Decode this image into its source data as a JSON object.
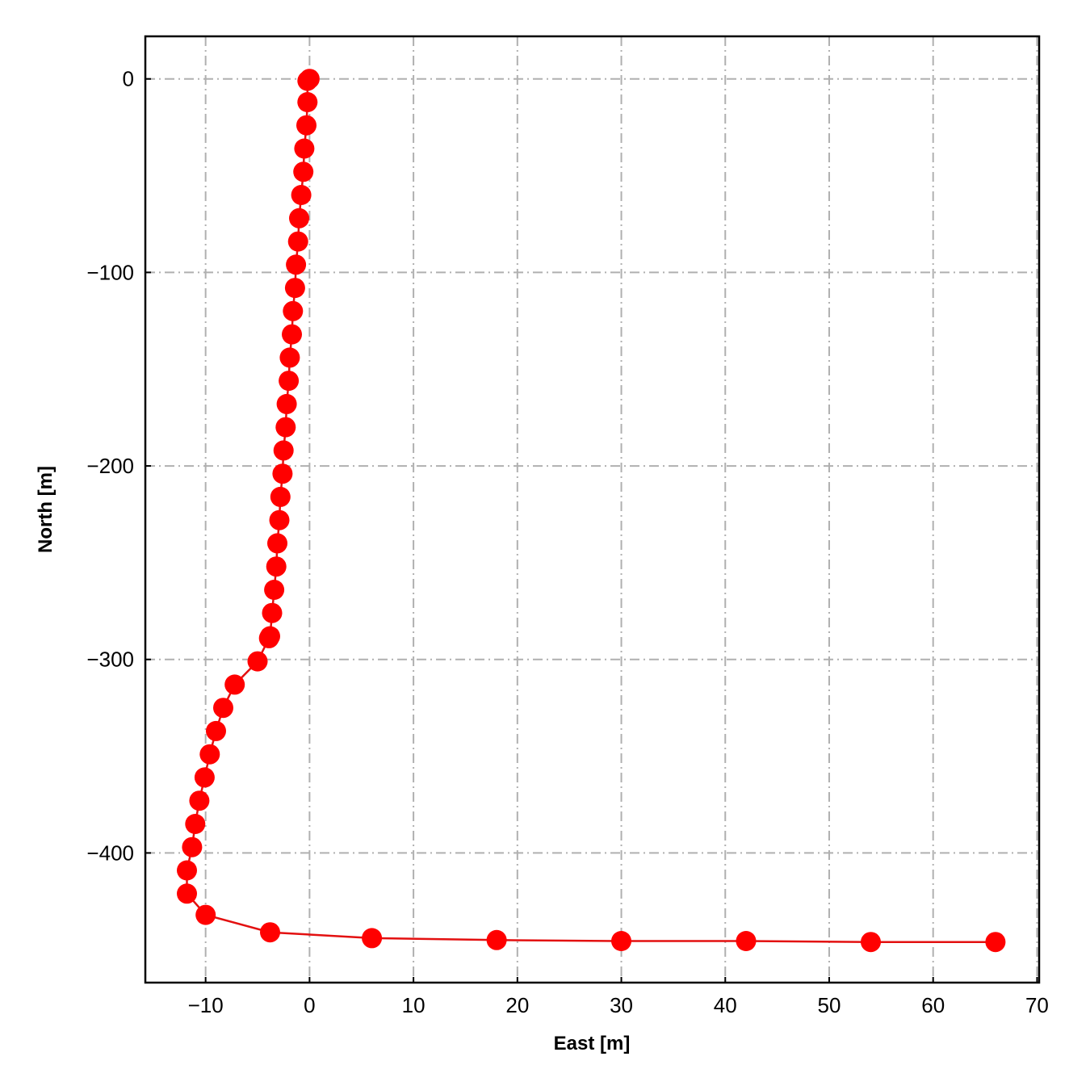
{
  "chart_data": {
    "type": "line",
    "xlabel": "East [m]",
    "ylabel": "North [m]",
    "xlim": [
      -15.8,
      70.2
    ],
    "ylim": [
      -467,
      22
    ],
    "xticks": [
      -10,
      0,
      10,
      20,
      30,
      40,
      50,
      60,
      70
    ],
    "yticks": [
      0,
      -100,
      -200,
      -300,
      -400
    ],
    "xtick_labels": [
      "−10",
      "0",
      "10",
      "20",
      "30",
      "40",
      "50",
      "60",
      "70"
    ],
    "ytick_labels": [
      "0",
      "−100",
      "−200",
      "−300",
      "−400"
    ],
    "grid": true,
    "line_color": "#e31010",
    "marker_color": "#ff0000",
    "series": [
      {
        "x": [
          0.0,
          -0.2,
          -0.2,
          -0.3,
          -0.5,
          -0.6,
          -0.8,
          -1.0,
          -1.1,
          -1.3,
          -1.4,
          -1.6,
          -1.7,
          -1.9,
          -2.0,
          -2.2,
          -2.3,
          -2.5,
          -2.6,
          -2.8,
          -2.9,
          -3.1,
          -3.2,
          -3.4,
          -3.6,
          -3.8,
          -3.9,
          -5.0,
          -7.2,
          -8.3,
          -9.0,
          -9.6,
          -10.1,
          -10.6,
          -11.0,
          -11.3,
          -11.8,
          -11.8,
          -10.0,
          -3.8,
          6.0,
          18.0,
          30.0,
          42.0,
          54.0,
          66.0
        ],
        "y": [
          0,
          -1,
          -12,
          -24,
          -36,
          -48,
          -60,
          -72,
          -84,
          -96,
          -108,
          -120,
          -132,
          -144,
          -156,
          -168,
          -180,
          -192,
          -204,
          -216,
          -228,
          -240,
          -252,
          -264,
          -276,
          -288,
          -289,
          -301,
          -313,
          -325,
          -337,
          -349,
          -361,
          -373,
          -385,
          -397,
          -409,
          -421,
          -432,
          -441,
          -444,
          -445,
          -445.5,
          -445.5,
          -446,
          -446
        ]
      }
    ]
  }
}
